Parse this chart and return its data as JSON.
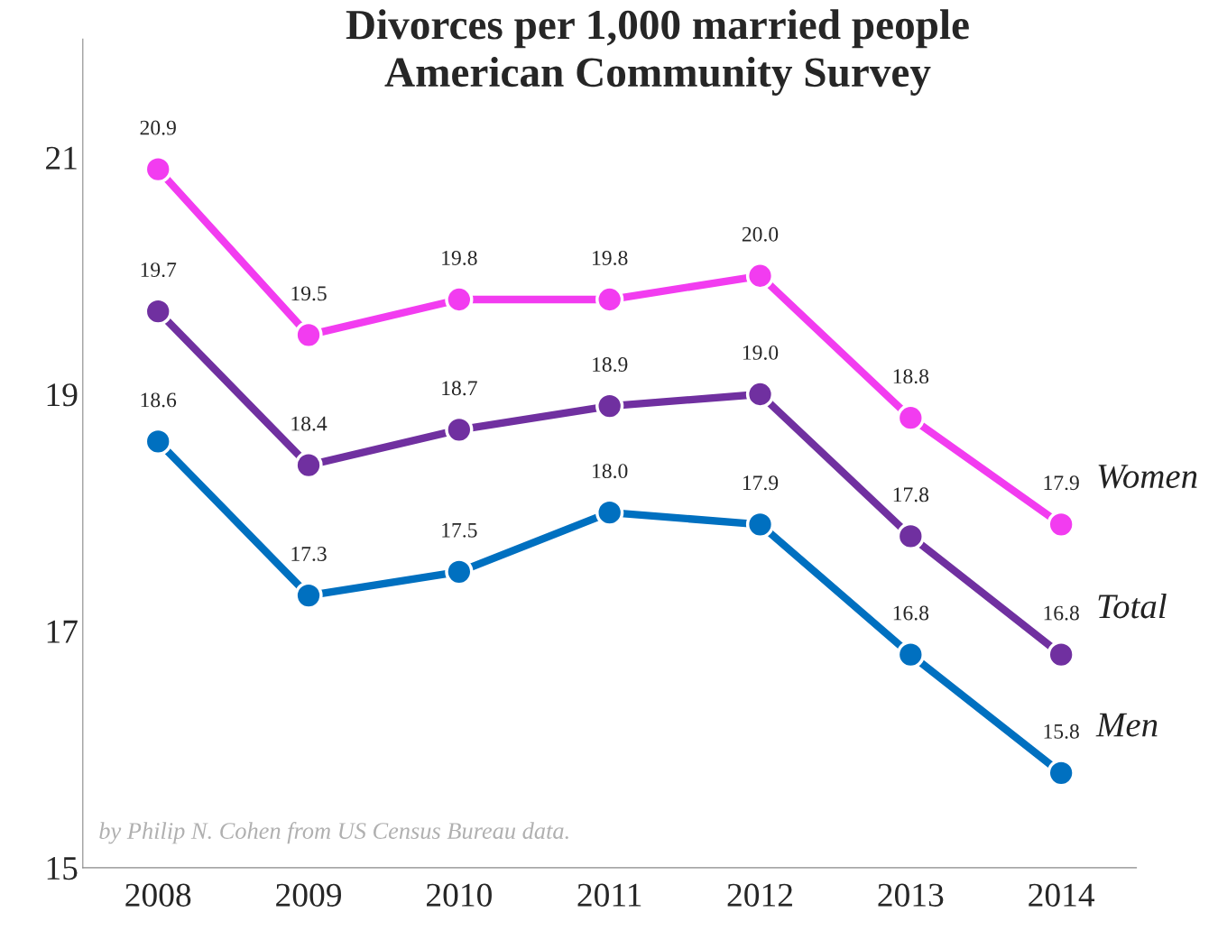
{
  "chart_data": {
    "type": "line",
    "title": "Divorces per 1,000 married people\nAmerican Community Survey",
    "categories": [
      "2008",
      "2009",
      "2010",
      "2011",
      "2012",
      "2013",
      "2014"
    ],
    "series": [
      {
        "name": "Women",
        "color": "#f23cf0",
        "values": [
          20.9,
          19.5,
          19.8,
          19.8,
          20.0,
          18.8,
          17.9
        ],
        "value_labels": [
          "20.9",
          "19.5",
          "19.8",
          "19.8",
          "20.0",
          "18.8",
          "17.9"
        ]
      },
      {
        "name": "Total",
        "color": "#7030a0",
        "values": [
          19.7,
          18.4,
          18.7,
          18.9,
          19.0,
          17.8,
          16.8
        ],
        "value_labels": [
          "19.7",
          "18.4",
          "18.7",
          "18.9",
          "19.0",
          "17.8",
          "16.8"
        ]
      },
      {
        "name": "Men",
        "color": "#0070c0",
        "values": [
          18.6,
          17.3,
          17.5,
          18.0,
          17.9,
          16.8,
          15.8
        ],
        "value_labels": [
          "18.6",
          "17.3",
          "17.5",
          "18.0",
          "17.9",
          "16.8",
          "15.8"
        ]
      }
    ],
    "ylim": [
      15,
      22
    ],
    "yticks": [
      15,
      17,
      19,
      21
    ],
    "grid": false,
    "legend": false,
    "marker": "circle",
    "line_style": "solid",
    "annotations": [
      "by Philip N. Cohen from US Census Bureau data."
    ]
  }
}
